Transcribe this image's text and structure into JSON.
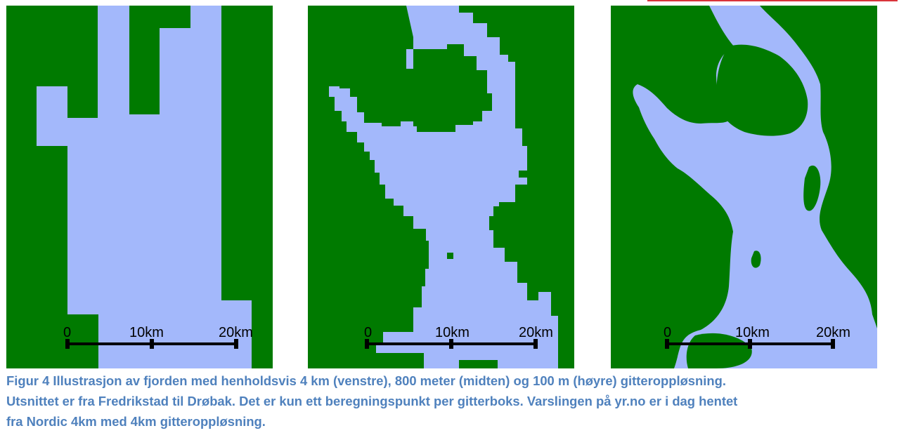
{
  "colors": {
    "land": "#007a00",
    "water": "#a3b8fb",
    "caption": "#4f81bd",
    "scale_bar": "#000000",
    "accent_rule": "#d9343a"
  },
  "panels": [
    {
      "id": "left",
      "resolution": "4 km",
      "scale_labels": [
        "0",
        "10km",
        "20km"
      ]
    },
    {
      "id": "middle",
      "resolution": "800 meter",
      "scale_labels": [
        "0",
        "10km",
        "20km"
      ]
    },
    {
      "id": "right",
      "resolution": "100 m",
      "scale_labels": [
        "0",
        "10km",
        "20km"
      ]
    }
  ],
  "caption": {
    "line1": "Figur 4 Illustrasjon av fjorden med henholdsvis 4 km (venstre), 800 meter (midten) og 100 m (høyre) gitteroppløsning.",
    "line2": "Utsnittet er fra Fredrikstad til Drøbak. Det er kun ett beregningspunkt per gitterboks. Varslingen på yr.no er i dag hentet",
    "line3": "fra Nordic 4km med 4km gitteroppløsning."
  }
}
